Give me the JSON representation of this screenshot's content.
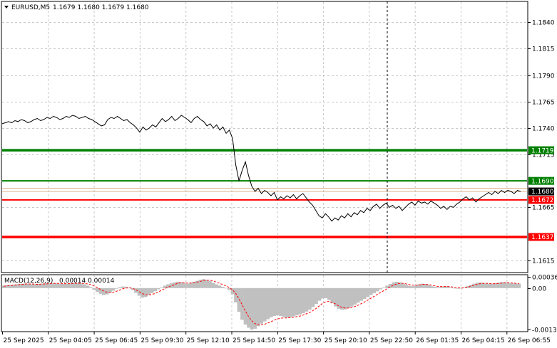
{
  "header": {
    "symbol": "EURUSD,M5",
    "ohlc": "1.1679 1.1680 1.1679 1.1680",
    "dropdown_glyph": "▼"
  },
  "chart_data": [
    {
      "type": "line",
      "title": "EURUSD,M5  1.1679 1.1680 1.1679 1.1680",
      "ylim": [
        1.1604,
        1.1859
      ],
      "y_ticks": [
        "1.1840",
        "1.1815",
        "1.1790",
        "1.1765",
        "1.1740",
        "1.1715",
        "1.1665",
        "1.1615"
      ],
      "y_tick_values": [
        1.184,
        1.1815,
        1.179,
        1.1765,
        1.174,
        1.1715,
        1.1665,
        1.1615
      ],
      "x_ticks": [
        "25 Sep 2025",
        "25 Sep 04:05",
        "25 Sep 06:45",
        "25 Sep 09:30",
        "25 Sep 12:10",
        "25 Sep 14:50",
        "25 Sep 17:30",
        "25 Sep 20:10",
        "25 Sep 22:50",
        "26 Sep 01:35",
        "26 Sep 04:15",
        "26 Sep 06:55"
      ],
      "grid": true,
      "series": [
        {
          "values": [
            1.1744,
            1.1745,
            1.1746,
            1.1745,
            1.1747,
            1.1746,
            1.1748,
            1.1747,
            1.1745,
            1.1746,
            1.1748,
            1.1749,
            1.1747,
            1.1748,
            1.175,
            1.1749,
            1.1751,
            1.175,
            1.1748,
            1.1749,
            1.1751,
            1.175,
            1.1752,
            1.1751,
            1.1749,
            1.175,
            1.1751,
            1.1749,
            1.1748,
            1.1746,
            1.1744,
            1.1742,
            1.1743,
            1.1748,
            1.175,
            1.1749,
            1.1751,
            1.1749,
            1.1747,
            1.1748,
            1.1745,
            1.1743,
            1.174,
            1.1736,
            1.1741,
            1.1738,
            1.174,
            1.1743,
            1.1741,
            1.1745,
            1.1749,
            1.1746,
            1.1748,
            1.1751,
            1.1747,
            1.1749,
            1.1752,
            1.175,
            1.1748,
            1.1745,
            1.1749,
            1.1751,
            1.1748,
            1.1746,
            1.1742,
            1.1744,
            1.174,
            1.1743,
            1.1738,
            1.1741,
            1.1735,
            1.1738,
            1.173,
            1.1705,
            1.169,
            1.17,
            1.1708,
            1.1695,
            1.1685,
            1.168,
            1.1683,
            1.1678,
            1.1681,
            1.1679,
            1.1676,
            1.1679,
            1.1672,
            1.1675,
            1.1673,
            1.1676,
            1.1674,
            1.1677,
            1.1673,
            1.1676,
            1.1678,
            1.1674,
            1.167,
            1.1667,
            1.1662,
            1.1657,
            1.1655,
            1.1659,
            1.1656,
            1.1652,
            1.1655,
            1.1653,
            1.1657,
            1.1655,
            1.1659,
            1.1656,
            1.166,
            1.1658,
            1.1662,
            1.166,
            1.1664,
            1.1662,
            1.1666,
            1.1668,
            1.1664,
            1.1667,
            1.1669,
            1.1665,
            1.1667,
            1.1664,
            1.1666,
            1.1662,
            1.1665,
            1.1668,
            1.167,
            1.1667,
            1.1671,
            1.1669,
            1.167,
            1.1668,
            1.1671,
            1.1669,
            1.1667,
            1.1664,
            1.1666,
            1.1663,
            1.1666,
            1.1665,
            1.1668,
            1.167,
            1.1673,
            1.1675,
            1.1672,
            1.1674,
            1.167,
            1.1673,
            1.1675,
            1.1677,
            1.1679,
            1.1677,
            1.168,
            1.1678,
            1.1681,
            1.1679,
            1.1681,
            1.168,
            1.1678,
            1.1681,
            1.168
          ]
        }
      ],
      "horizontal_lines": [
        {
          "label": "1.1719",
          "value": 1.1719,
          "color": "#008000",
          "tag_color": "#008000",
          "width": "thick"
        },
        {
          "label": "1.1690",
          "value": 1.169,
          "color": "#008000",
          "tag_color": "#008000",
          "width": "medium"
        },
        {
          "label": "1.1680",
          "value": 1.168,
          "color": "#d9b38c",
          "tag_color": "#000000",
          "width": "thin"
        },
        {
          "label": "1.1672",
          "value": 1.1672,
          "color": "#ff0000",
          "tag_color": "#ff0000",
          "width": "medium"
        },
        {
          "label": "1.1637",
          "value": 1.1637,
          "color": "#ff0000",
          "tag_color": "#ff0000",
          "width": "thick"
        }
      ],
      "extra_level": {
        "value": 1.1683,
        "color": "#d9b38c"
      },
      "vertical_marker": {
        "x_index": 0.803,
        "style": "dashed"
      },
      "colors": {
        "price_line": "#000000",
        "grid": "#c8c8c8"
      }
    },
    {
      "type": "bar",
      "title": "MACD(12,26,9) 0.00014 0.00014",
      "label_name": "MACD(12,26,9)",
      "label_values": "0.00014 0.00014",
      "ylim": [
        -0.00135,
        0.0004
      ],
      "y_ticks": [
        "0.00036",
        "0.00",
        "-0.00131"
      ],
      "y_tick_values": [
        0.00036,
        0.0,
        -0.00131
      ],
      "series": [
        {
          "name": "MACD",
          "values": [
            8e-05,
            9e-05,
            0.0001,
            0.00011,
            0.00012,
            0.00013,
            0.00014,
            0.00014,
            0.00013,
            0.00012,
            0.00012,
            0.00013,
            0.00014,
            0.00015,
            0.00016,
            0.00016,
            0.00015,
            0.00014,
            0.00013,
            0.00013,
            0.00014,
            0.00015,
            0.00016,
            0.00016,
            0.00015,
            0.00012,
            8e-05,
            3e-05,
            -5e-05,
            -0.00012,
            -0.00018,
            -0.00022,
            -0.0002,
            -0.00015,
            -8e-05,
            -2e-05,
            3e-05,
            5e-05,
            4e-05,
            1e-05,
            -6e-05,
            -0.00015,
            -0.00024,
            -0.0003,
            -0.00028,
            -0.00022,
            -0.00016,
            -0.0001,
            -4e-05,
            2e-05,
            8e-05,
            0.00012,
            0.00015,
            0.00018,
            0.0002,
            0.00019,
            0.00016,
            0.00014,
            0.00016,
            0.0002,
            0.00023,
            0.00026,
            0.00028,
            0.00026,
            0.00022,
            0.00017,
            0.00012,
            8e-05,
            4e-05,
            0.0,
            -6e-05,
            -0.0002,
            -0.00045,
            -0.00075,
            -0.001,
            -0.00115,
            -0.00125,
            -0.00131,
            -0.00128,
            -0.0012,
            -0.00112,
            -0.00105,
            -0.00098,
            -0.00092,
            -0.00088,
            -0.00086,
            -0.00088,
            -0.00091,
            -0.00093,
            -0.00092,
            -0.00089,
            -0.00086,
            -0.00083,
            -0.00079,
            -0.00074,
            -0.00068,
            -0.0006,
            -0.0005,
            -0.0004,
            -0.00033,
            -0.00032,
            -0.00038,
            -0.00048,
            -0.00058,
            -0.00065,
            -0.00068,
            -0.00067,
            -0.00063,
            -0.00058,
            -0.00052,
            -0.00046,
            -0.0004,
            -0.00034,
            -0.00028,
            -0.00022,
            -0.00016,
            -0.0001,
            -4e-05,
            2e-05,
            8e-05,
            0.00013,
            0.00018,
            0.0002,
            0.00018,
            0.00014,
            0.0001,
            7e-05,
            6e-05,
            8e-05,
            0.00012,
            0.00014,
            0.00013,
            0.0001,
            6e-05,
            4e-05,
            3e-05,
            4e-05,
            6e-05,
            5e-05,
            2e-05,
            0.0,
            -2e-05,
            -1e-05,
            2e-05,
            6e-05,
            0.0001,
            0.00014,
            0.00017,
            0.00018,
            0.00016,
            0.00014,
            0.00013,
            0.00014,
            0.00016,
            0.00018,
            0.00019,
            0.00018,
            0.00016,
            0.00015,
            0.00014,
            0.00014
          ]
        },
        {
          "name": "Signal",
          "values": [
            6e-05,
            7e-05,
            8e-05,
            9e-05,
            0.0001,
            0.00011,
            0.00012,
            0.00013,
            0.00013,
            0.00013,
            0.00012,
            0.00012,
            0.00013,
            0.00013,
            0.00014,
            0.00015,
            0.00015,
            0.00015,
            0.00014,
            0.00014,
            0.00014,
            0.00014,
            0.00015,
            0.00015,
            0.00015,
            0.00015,
            0.00013,
            0.00011,
            7e-05,
            2e-05,
            -4e-05,
            -9e-05,
            -0.00013,
            -0.00014,
            -0.00013,
            -0.0001,
            -6e-05,
            -2e-05,
            0.0,
            1e-05,
            -1e-05,
            -5e-05,
            -0.00011,
            -0.00017,
            -0.00021,
            -0.00022,
            -0.0002,
            -0.00017,
            -0.00012,
            -7e-05,
            -2e-05,
            3e-05,
            7e-05,
            0.00011,
            0.00015,
            0.00017,
            0.00017,
            0.00016,
            0.00016,
            0.00017,
            0.00019,
            0.00021,
            0.00024,
            0.00025,
            0.00025,
            0.00023,
            0.00019,
            0.00015,
            0.00011,
            7e-05,
            2e-05,
            -5e-05,
            -0.00016,
            -0.00033,
            -0.00052,
            -0.00072,
            -0.00089,
            -0.00103,
            -0.00112,
            -0.00116,
            -0.00116,
            -0.00114,
            -0.0011,
            -0.00106,
            -0.00101,
            -0.00097,
            -0.00095,
            -0.00094,
            -0.00094,
            -0.00093,
            -0.00092,
            -0.0009,
            -0.00088,
            -0.00085,
            -0.00081,
            -0.00077,
            -0.00071,
            -0.00064,
            -0.00056,
            -0.00048,
            -0.00043,
            -0.00042,
            -0.00045,
            -0.0005,
            -0.00056,
            -0.00061,
            -0.00063,
            -0.00063,
            -0.00061,
            -0.00058,
            -0.00054,
            -0.00049,
            -0.00044,
            -0.00038,
            -0.00032,
            -0.00026,
            -0.0002,
            -0.00014,
            -8e-05,
            -2e-05,
            4e-05,
            9e-05,
            0.00013,
            0.00015,
            0.00015,
            0.00013,
            0.00011,
            9e-05,
            9e-05,
            0.0001,
            0.00012,
            0.00012,
            0.00011,
            9e-05,
            7e-05,
            5e-05,
            5e-05,
            5e-05,
            5e-05,
            4e-05,
            2e-05,
            1e-05,
            0.0,
            1e-05,
            3e-05,
            6e-05,
            9e-05,
            0.00012,
            0.00014,
            0.00015,
            0.00015,
            0.00014,
            0.00014,
            0.00014,
            0.00015,
            0.00016,
            0.00017,
            0.00017,
            0.00016,
            0.00015,
            0.00014
          ]
        }
      ],
      "colors": {
        "histogram": "#c0c0c0",
        "signal": "#ff0000"
      }
    }
  ]
}
